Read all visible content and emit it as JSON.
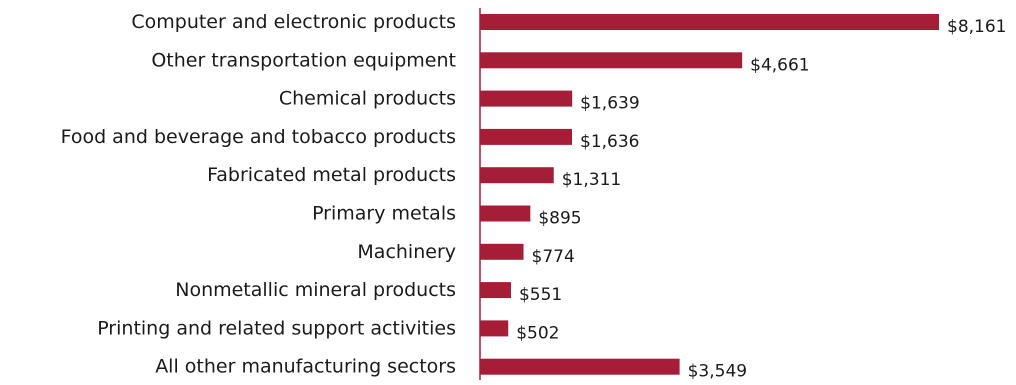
{
  "chart_data": {
    "type": "bar",
    "orientation": "horizontal",
    "categories": [
      "Computer and electronic products",
      "Other transportation equipment",
      "Chemical products",
      "Food and beverage and tobacco products",
      "Fabricated metal products",
      "Primary metals",
      "Machinery",
      "Nonmetallic mineral products",
      "Printing and related support activities",
      "All other manufacturing sectors"
    ],
    "values": [
      8161,
      4661,
      1639,
      1636,
      1311,
      895,
      774,
      551,
      502,
      3549
    ],
    "value_labels": [
      "$8,161",
      "$4,661",
      "$1,639",
      "$1,636",
      "$1,311",
      "$895",
      "$774",
      "$551",
      "$502",
      "$3,549"
    ],
    "title": "",
    "xlabel": "",
    "ylabel": "",
    "xlim": [
      0,
      8161
    ],
    "grid": false,
    "legend": "none",
    "bar_color": "#a51d36",
    "axis_color": "#a51d36"
  }
}
